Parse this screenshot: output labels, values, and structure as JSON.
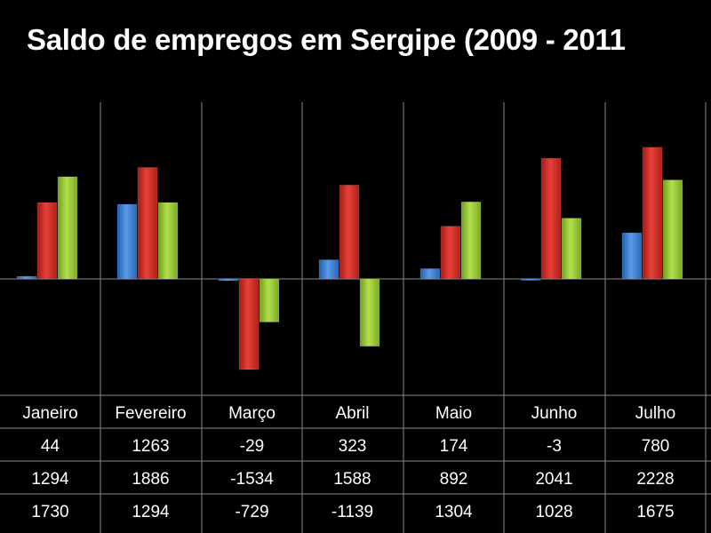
{
  "chart_data": {
    "type": "bar",
    "title": "Saldo de empregos em Sergipe (2009 - 2011",
    "categories": [
      "Janeiro",
      "Fevereiro",
      "Março",
      "Abril",
      "Maio",
      "Junho",
      "Julho"
    ],
    "series": [
      {
        "values": [
          44,
          1263,
          -29,
          323,
          174,
          -3,
          780
        ],
        "color": "#3a7fd0"
      },
      {
        "values": [
          1294,
          1886,
          -1534,
          1588,
          892,
          2041,
          2228
        ],
        "color": "#d42a24"
      },
      {
        "values": [
          1730,
          1294,
          -729,
          -1139,
          1304,
          1028,
          1675
        ],
        "color": "#92c832"
      }
    ],
    "table_rows": [
      [
        "44",
        "1263",
        "-29",
        "323",
        "174",
        "-3",
        "780"
      ],
      [
        "1294",
        "1886",
        "-1534",
        "1588",
        "892",
        "2041",
        "2228"
      ],
      [
        "1730",
        "1294",
        "-729",
        "-1139",
        "1304",
        "1028",
        "1675"
      ]
    ],
    "grid": false,
    "legend": "none"
  }
}
